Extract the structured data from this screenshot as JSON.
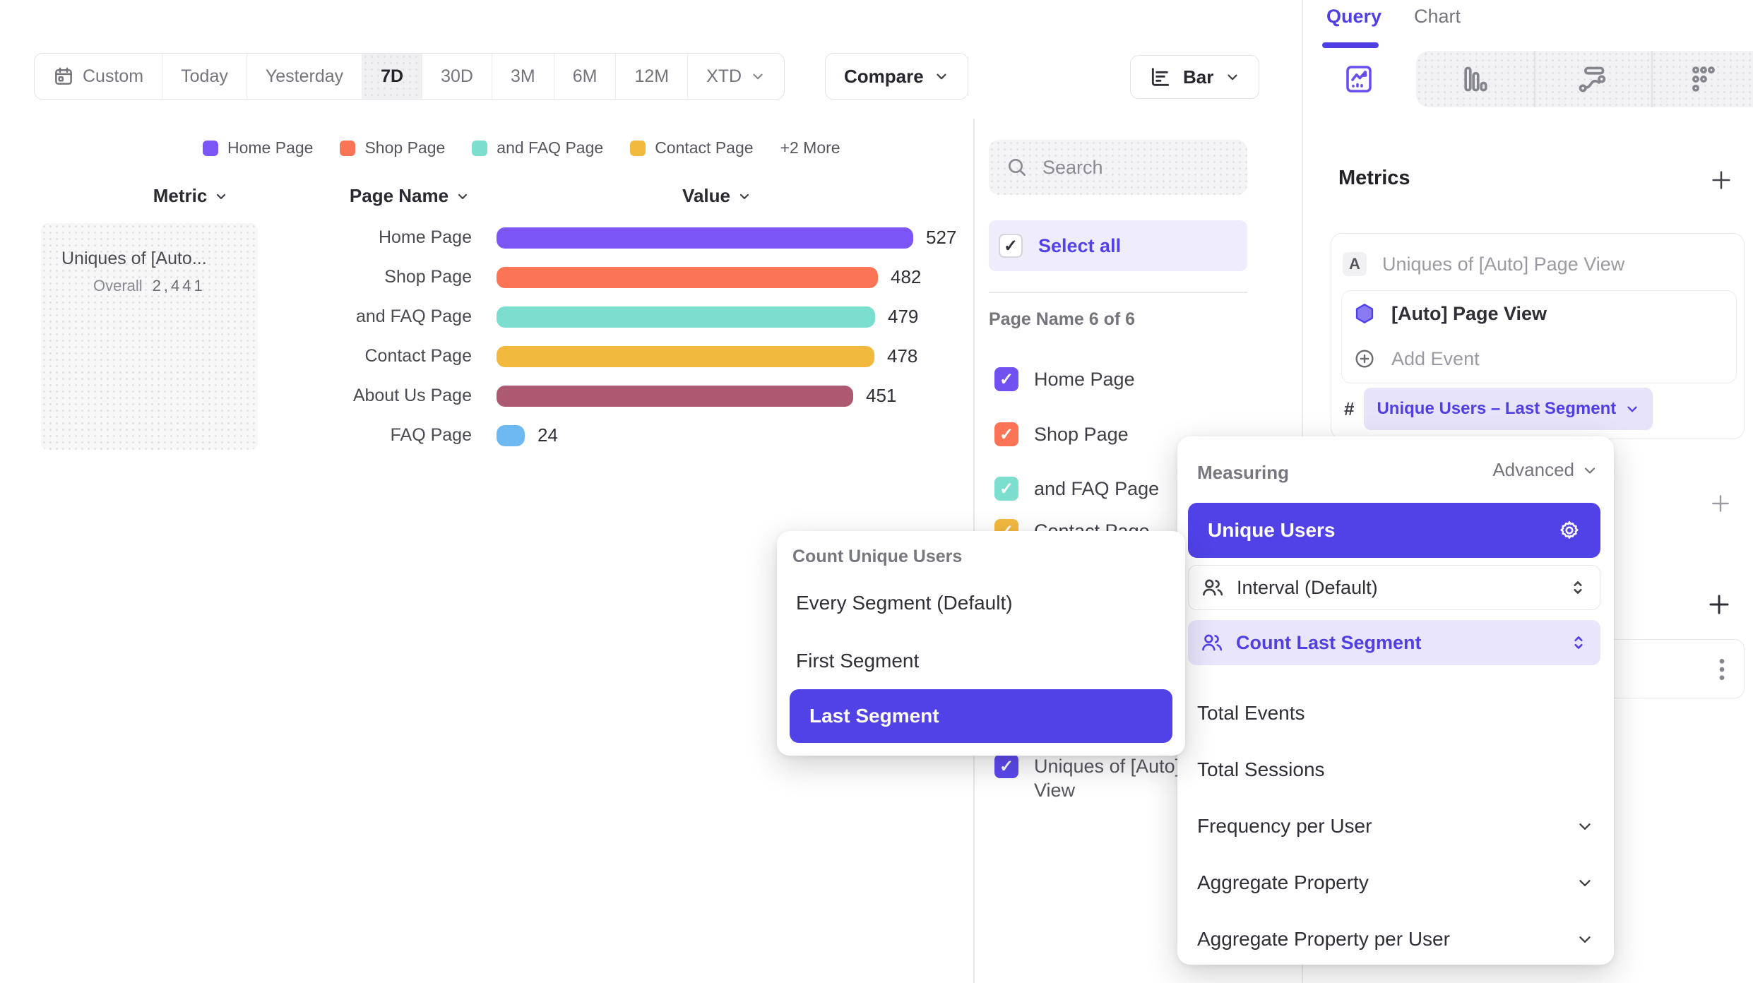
{
  "toolbar": {
    "date_ranges": [
      "Custom",
      "Today",
      "Yesterday",
      "7D",
      "30D",
      "3M",
      "6M",
      "12M",
      "XTD"
    ],
    "active_range": "7D",
    "compare_label": "Compare",
    "chart_type_label": "Bar"
  },
  "legend": {
    "items": [
      {
        "label": "Home Page",
        "color": "#7c55f6"
      },
      {
        "label": "Shop Page",
        "color": "#fb7456"
      },
      {
        "label": "and FAQ Page",
        "color": "#7cdece"
      },
      {
        "label": "Contact Page",
        "color": "#f2b93f"
      }
    ],
    "more_label": "+2 More"
  },
  "table": {
    "metric_header": "Metric",
    "page_header": "Page Name",
    "value_header": "Value",
    "metric_card": {
      "title": "Uniques of [Auto...",
      "overall_label": "Overall",
      "overall_value": "2,441"
    }
  },
  "chart_data": {
    "type": "bar",
    "orientation": "horizontal",
    "metric": "Uniques of [Auto] Page View",
    "categories": [
      "Home Page",
      "Shop Page",
      "and FAQ Page",
      "Contact Page",
      "About Us Page",
      "FAQ Page"
    ],
    "values": [
      527,
      482,
      479,
      478,
      451,
      24
    ],
    "colors": [
      "#7c55f6",
      "#fb7456",
      "#7cdece",
      "#f2b93f",
      "#ad5971",
      "#6fb9f2"
    ],
    "overall": 2441
  },
  "filter_panel": {
    "search_placeholder": "Search",
    "select_all_label": "Select all",
    "section_label": "Page Name 6 of 6",
    "items": [
      {
        "label": "Home Page",
        "color": "#7152f0"
      },
      {
        "label": "Shop Page",
        "color": "#fb7456"
      },
      {
        "label": "and FAQ Page",
        "color": "#7cdece"
      },
      {
        "label": "Contact Page",
        "color": "#f2b93f"
      },
      {
        "label": "Uniques of [Auto] Page View",
        "color": "#5b49ee"
      }
    ]
  },
  "right_panel": {
    "tabs": {
      "query": "Query",
      "chart": "Chart"
    },
    "metrics_heading": "Metrics",
    "metric_card": {
      "badge": "A",
      "title": "Uniques of [Auto] Page View",
      "event_name": "[Auto] Page View",
      "add_event_label": "Add Event",
      "hash": "#",
      "pill_label": "Unique Users – Last Segment"
    }
  },
  "measuring_popup": {
    "title": "Measuring",
    "advanced_label": "Advanced",
    "selected_option": "Unique Users",
    "interval_label": "Interval (Default)",
    "count_last_label": "Count Last Segment",
    "simple_options": [
      "Total Events",
      "Total Sessions"
    ],
    "expandable_options": [
      "Frequency per User",
      "Aggregate Property",
      "Aggregate Property per User"
    ]
  },
  "count_popup": {
    "title": "Count Unique Users",
    "options": [
      "Every Segment (Default)",
      "First Segment"
    ],
    "selected": "Last Segment"
  },
  "colors": {
    "accent": "#5142e8",
    "accent_light": "#e7e3fb",
    "bar_purple": "#7c55f6",
    "coral": "#fb7456",
    "teal": "#7cdece",
    "amber": "#f2b93f",
    "maroon": "#ad5971",
    "sky_blue": "#6fb9f2"
  }
}
